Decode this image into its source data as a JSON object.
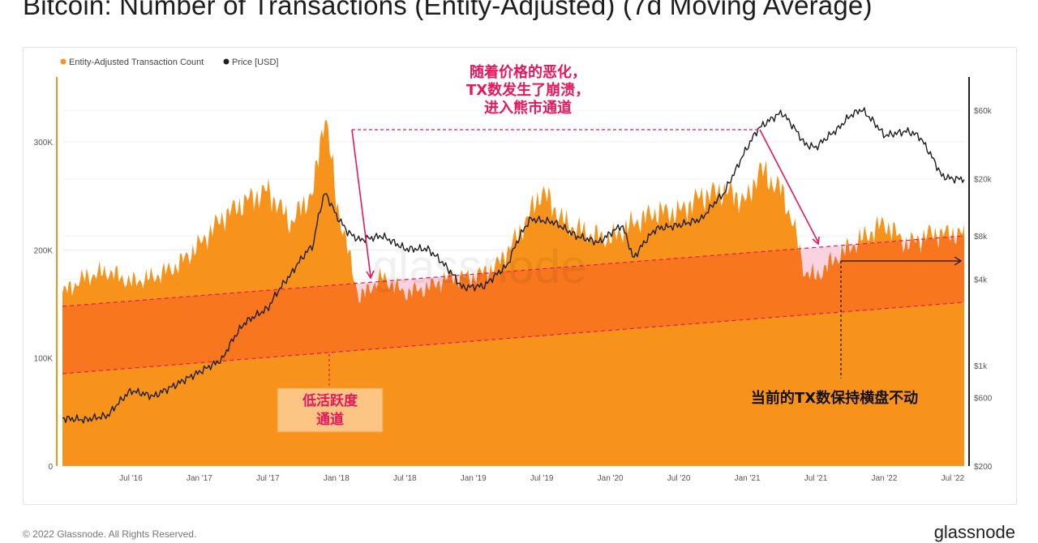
{
  "header": {
    "title": "Bitcoin: Number of Transactions (Entity-Adjusted) (7d Moving Average)"
  },
  "footer": {
    "copyright": "© 2022 Glassnode. All Rights Reserved.",
    "brand": "glassnode"
  },
  "watermark": "glassnode",
  "colors": {
    "tx_fill": "#f7931a",
    "price_line": "#1f1f1f",
    "channel_fill": "#f7761e",
    "dip_fill": "#fbd3e0",
    "annotation": "#e8175d",
    "label_box_fill": "#fcc583",
    "label_box_border": "#f2a24a"
  },
  "chart_data": {
    "type": "area",
    "title": "Bitcoin: Number of Transactions (Entity-Adjusted) (7d Moving Average)",
    "legend_position": "top-left",
    "grid": true,
    "x_ticks": [
      "Jul '16",
      "Jan '17",
      "Jul '17",
      "Jan '18",
      "Jul '18",
      "Jan '19",
      "Jul '19",
      "Jan '20",
      "Jul '20",
      "Jan '21",
      "Jul '21",
      "Jan '22",
      "Jul '22"
    ],
    "y_left_ticks": [
      "0",
      "100K",
      "200K",
      "300K"
    ],
    "y_left_range": [
      0,
      360000
    ],
    "y_right_ticks": [
      "$200",
      "$600",
      "$1k",
      "$4k",
      "$8k",
      "$20k",
      "$60k"
    ],
    "y_right_range": [
      200,
      90000
    ],
    "y_right_scale": "log",
    "series": [
      {
        "name": "Entity-Adjusted Transaction Count",
        "type": "area",
        "axis": "left",
        "x": [
          "2016-01",
          "2016-03",
          "2016-05",
          "2016-07",
          "2016-09",
          "2016-11",
          "2017-01",
          "2017-03",
          "2017-05",
          "2017-07",
          "2017-09",
          "2017-11",
          "2017-12",
          "2018-01",
          "2018-02",
          "2018-03",
          "2018-05",
          "2018-07",
          "2018-09",
          "2018-11",
          "2019-01",
          "2019-03",
          "2019-05",
          "2019-07",
          "2019-09",
          "2019-11",
          "2020-01",
          "2020-03",
          "2020-05",
          "2020-07",
          "2020-09",
          "2020-11",
          "2021-01",
          "2021-02",
          "2021-04",
          "2021-05",
          "2021-06",
          "2021-07",
          "2021-09",
          "2021-11",
          "2022-01",
          "2022-03",
          "2022-05",
          "2022-07"
        ],
        "values": [
          160000,
          175000,
          180000,
          170000,
          175000,
          185000,
          205000,
          230000,
          245000,
          255000,
          225000,
          255000,
          330000,
          245000,
          200000,
          155000,
          175000,
          160000,
          165000,
          175000,
          175000,
          185000,
          215000,
          255000,
          225000,
          215000,
          210000,
          225000,
          235000,
          235000,
          250000,
          255000,
          245000,
          275000,
          255000,
          225000,
          180000,
          175000,
          195000,
          210000,
          225000,
          205000,
          215000,
          215000
        ]
      },
      {
        "name": "Price [USD]",
        "type": "line",
        "axis": "right",
        "x": [
          "2016-01",
          "2016-03",
          "2016-05",
          "2016-07",
          "2016-09",
          "2016-11",
          "2017-01",
          "2017-03",
          "2017-05",
          "2017-07",
          "2017-09",
          "2017-11",
          "2017-12",
          "2018-01",
          "2018-02",
          "2018-03",
          "2018-05",
          "2018-07",
          "2018-09",
          "2018-11",
          "2018-12",
          "2019-02",
          "2019-04",
          "2019-06",
          "2019-08",
          "2019-10",
          "2019-12",
          "2020-02",
          "2020-03",
          "2020-05",
          "2020-07",
          "2020-09",
          "2020-11",
          "2020-12",
          "2021-01",
          "2021-02",
          "2021-04",
          "2021-06",
          "2021-07",
          "2021-09",
          "2021-10",
          "2021-11",
          "2022-01",
          "2022-03",
          "2022-04",
          "2022-05",
          "2022-06",
          "2022-07"
        ],
        "values": [
          430,
          420,
          450,
          670,
          610,
          740,
          900,
          1100,
          2000,
          2500,
          4300,
          7000,
          16000,
          11000,
          8500,
          7500,
          8000,
          6500,
          6500,
          4500,
          3500,
          3600,
          5000,
          10500,
          10000,
          8000,
          7200,
          9500,
          5500,
          9000,
          9500,
          10500,
          16000,
          23000,
          33000,
          45000,
          58000,
          35000,
          33000,
          45000,
          55000,
          61000,
          40000,
          43000,
          40000,
          30000,
          21000,
          20000
        ]
      }
    ],
    "annotations": {
      "bear_market_note": [
        "随着价格的恶化，",
        "TX数发生了崩溃，",
        "进入熊市通道"
      ],
      "channel_label": [
        "低活跃度",
        "通道"
      ],
      "sideways_note": "当前的TX数保持横盘不动"
    }
  }
}
